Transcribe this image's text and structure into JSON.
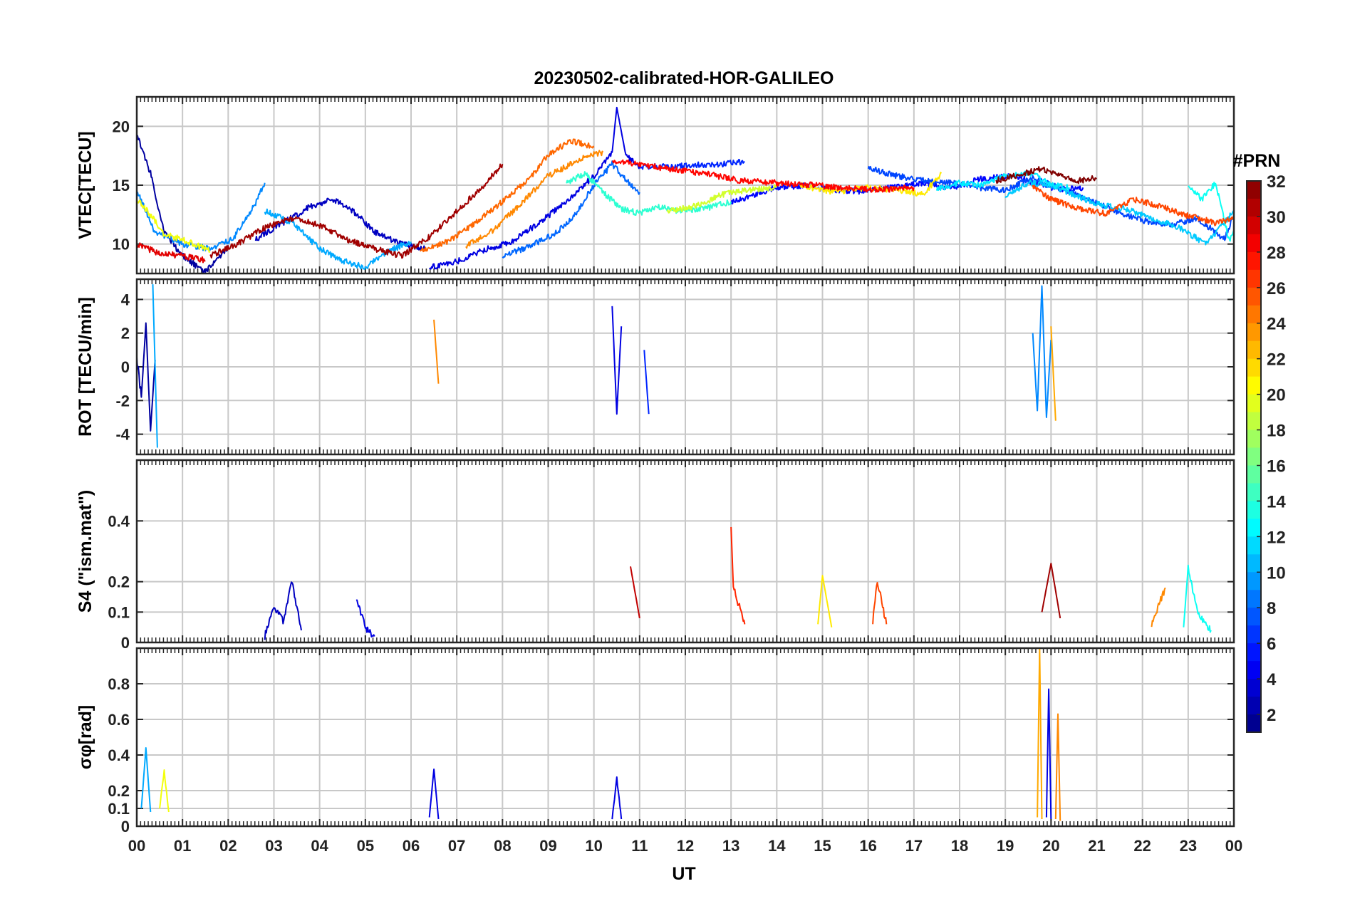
{
  "chart_data": {
    "title": "20230502-calibrated-HOR-GALILEO",
    "xlabel": "UT",
    "x_tick_labels": [
      "00",
      "01",
      "02",
      "03",
      "04",
      "05",
      "06",
      "07",
      "08",
      "09",
      "10",
      "11",
      "12",
      "13",
      "14",
      "15",
      "16",
      "17",
      "18",
      "19",
      "20",
      "21",
      "22",
      "23",
      "00"
    ],
    "xlim": [
      0,
      24
    ],
    "grid": true,
    "colorbar": {
      "label": "#PRN",
      "range": [
        1,
        32
      ],
      "ticks": [
        "2",
        "4",
        "6",
        "8",
        "10",
        "12",
        "14",
        "16",
        "18",
        "20",
        "22",
        "24",
        "26",
        "28",
        "30",
        "32"
      ],
      "colormap": "jet",
      "placement": "right"
    },
    "panels": [
      {
        "name": "vtec",
        "type": "line",
        "ylabel": "VTEC[TECU]",
        "ylim": [
          7.5,
          22.5
        ],
        "y_ticks": [
          10,
          15,
          20
        ],
        "y_tick_labels": [
          "10",
          "15",
          "20"
        ],
        "series": [
          {
            "prn": 2,
            "x": [
              0,
              0.3,
              0.6,
              1.0,
              1.5,
              2.0
            ],
            "y": [
              19.4,
              16.0,
              11.0,
              9.0,
              7.6,
              9.8
            ]
          },
          {
            "prn": 3,
            "x": [
              2.6,
              3.2,
              3.8,
              4.3,
              4.8,
              5.2,
              5.8,
              6.3
            ],
            "y": [
              10.4,
              11.8,
              13.2,
              13.8,
              12.6,
              11.0,
              10.0,
              9.6
            ]
          },
          {
            "prn": 4,
            "x": [
              6.4,
              7.0,
              7.6,
              8.2,
              8.8,
              9.4,
              10.0,
              10.4,
              10.5,
              10.7,
              11.0
            ],
            "y": [
              8.0,
              8.5,
              9.5,
              10.2,
              11.8,
              13.6,
              15.8,
              17.8,
              21.6,
              17.5,
              16.6
            ]
          },
          {
            "prn": 5,
            "x": [
              13.0,
              13.5,
              14.0,
              14.6,
              15.2,
              15.8,
              16.5,
              17.2,
              17.8,
              18.4,
              19.2,
              19.8,
              20.2,
              20.7
            ],
            "y": [
              13.5,
              14.2,
              14.8,
              15.0,
              14.6,
              14.5,
              14.8,
              15.2,
              14.7,
              15.5,
              15.8,
              15.0,
              14.6,
              14.8
            ]
          },
          {
            "prn": 6,
            "x": [
              11.0,
              11.6,
              12.2,
              12.8,
              13.3
            ],
            "y": [
              16.6,
              16.6,
              16.7,
              16.8,
              17.0
            ]
          },
          {
            "prn": 7,
            "x": [
              16.0,
              16.6,
              17.2,
              17.8,
              18.4,
              19.0,
              19.6,
              20.2,
              20.8,
              21.4,
              22.0,
              22.6,
              23.2,
              23.8,
              24.0
            ],
            "y": [
              16.5,
              15.8,
              15.4,
              15.2,
              14.8,
              14.6,
              15.6,
              14.8,
              13.8,
              12.8,
              12.0,
              11.6,
              12.2,
              10.4,
              12.5
            ]
          },
          {
            "prn": 8,
            "x": [
              8.0,
              8.6,
              9.2,
              9.6,
              10.0,
              10.4,
              10.8,
              11.0
            ],
            "y": [
              9.0,
              9.8,
              11.0,
              12.6,
              15.0,
              16.8,
              15.0,
              14.4
            ]
          },
          {
            "prn": 9,
            "x": [
              0,
              0.4,
              1.0,
              1.6,
              2.1,
              2.6,
              2.8
            ],
            "y": [
              14.5,
              11.0,
              10.0,
              9.6,
              10.4,
              13.5,
              15.2
            ]
          },
          {
            "prn": 10,
            "x": [
              2.8,
              3.4,
              4.0,
              4.5,
              5.0,
              5.5,
              6.0
            ],
            "y": [
              12.8,
              11.8,
              9.6,
              8.6,
              8.0,
              9.4,
              10.2
            ]
          },
          {
            "prn": 11,
            "x": [
              19.0,
              19.5,
              20.0,
              20.5,
              21.0,
              21.6,
              22.2,
              22.8,
              23.4,
              24.0
            ],
            "y": [
              14.0,
              15.2,
              15.0,
              14.2,
              13.4,
              13.0,
              12.2,
              11.4,
              10.0,
              12.8
            ]
          },
          {
            "prn": 12,
            "x": [
              17.5,
              18.0,
              18.5,
              19.0,
              19.6,
              20.0,
              20.4
            ],
            "y": [
              14.6,
              15.2,
              15.0,
              15.8,
              16.0,
              15.0,
              14.8
            ]
          },
          {
            "prn": 13,
            "x": [
              23.0,
              23.3,
              23.6,
              23.9,
              24.0
            ],
            "y": [
              15.0,
              13.8,
              15.2,
              10.2,
              11.2
            ]
          },
          {
            "prn": 14,
            "x": [
              9.4,
              9.8,
              10.2,
              10.6,
              11.0,
              11.4,
              11.8,
              12.4,
              13.0
            ],
            "y": [
              15.2,
              16.0,
              14.4,
              13.0,
              12.6,
              13.2,
              12.8,
              13.0,
              13.6
            ]
          },
          {
            "prn": 19,
            "x": [
              11.6,
              12.2,
              12.8,
              13.4,
              14.0
            ],
            "y": [
              12.8,
              13.2,
              14.2,
              14.6,
              14.8
            ]
          },
          {
            "prn": 20,
            "x": [
              0,
              0.3,
              0.6,
              1.0,
              1.6
            ],
            "y": [
              13.8,
              12.5,
              10.8,
              10.4,
              9.4
            ]
          },
          {
            "prn": 21,
            "x": [
              14.5,
              15.2,
              16.0,
              16.6,
              17.2,
              17.6
            ],
            "y": [
              15.0,
              14.4,
              14.8,
              14.6,
              14.2,
              16.0
            ]
          },
          {
            "prn": 24,
            "x": [
              7.2,
              7.8,
              8.4,
              9.0,
              9.4,
              9.8,
              10.2
            ],
            "y": [
              9.8,
              11.2,
              13.4,
              15.8,
              16.6,
              17.4,
              17.8
            ]
          },
          {
            "prn": 25,
            "x": [
              6.2,
              6.8,
              7.4,
              8.0,
              8.6,
              9.0,
              9.5,
              10.0
            ],
            "y": [
              9.4,
              10.2,
              11.8,
              13.6,
              15.6,
              17.6,
              18.8,
              18.2
            ]
          },
          {
            "prn": 26,
            "x": [
              19.6,
              20.0,
              20.6,
              21.2,
              21.8,
              22.4,
              23.0,
              23.6,
              24.0
            ],
            "y": [
              15.0,
              13.8,
              13.0,
              12.6,
              13.8,
              13.2,
              12.4,
              11.8,
              12.2
            ]
          },
          {
            "prn": 28,
            "x": [
              10.4,
              11.0,
              11.6,
              12.4,
              13.2,
              14.0,
              14.8,
              15.4,
              16.2,
              17.0
            ],
            "y": [
              17.0,
              16.8,
              16.4,
              16.0,
              15.4,
              15.2,
              15.0,
              14.8,
              14.6,
              14.8
            ]
          },
          {
            "prn": 29,
            "x": [
              0,
              0.5,
              1.0,
              1.5
            ],
            "y": [
              10.0,
              9.2,
              9.0,
              8.6
            ]
          },
          {
            "prn": 31,
            "x": [
              1.6,
              2.2,
              2.8,
              3.4,
              4.0,
              4.6,
              5.2,
              5.8,
              6.4,
              7.0,
              7.6,
              8.0
            ],
            "y": [
              9.0,
              10.0,
              11.4,
              12.2,
              11.6,
              10.4,
              9.6,
              9.0,
              10.6,
              12.8,
              15.0,
              16.8
            ]
          },
          {
            "prn": 32,
            "x": [
              18.8,
              19.4,
              19.8,
              20.2,
              20.6,
              21.0
            ],
            "y": [
              15.4,
              16.0,
              16.4,
              15.8,
              15.4,
              15.6
            ]
          }
        ]
      },
      {
        "name": "rot",
        "type": "line",
        "ylabel": "ROT [TECU/min]",
        "ylim": [
          -5.2,
          5.2
        ],
        "y_ticks": [
          -4,
          -2,
          0,
          2,
          4
        ],
        "y_tick_labels": [
          "-4",
          "-2",
          "0",
          "2",
          "4"
        ],
        "series": [
          {
            "prn": 2,
            "x": [
              0,
              0.1,
              0.2,
              0.3,
              0.4
            ],
            "y": [
              0.5,
              -1.8,
              2.6,
              -3.8,
              0.4
            ]
          },
          {
            "prn": 10,
            "x": [
              0.35,
              0.45
            ],
            "y": [
              4.9,
              -4.8
            ]
          },
          {
            "prn": 4,
            "x": [
              10.4,
              10.5,
              10.6
            ],
            "y": [
              3.6,
              -2.8,
              2.4
            ]
          },
          {
            "prn": 6,
            "x": [
              11.1,
              11.2
            ],
            "y": [
              1.0,
              -2.8
            ]
          },
          {
            "prn": 9,
            "x": [
              19.6,
              19.7,
              19.8,
              19.9,
              20.0
            ],
            "y": [
              2.0,
              -2.6,
              4.8,
              -3.0,
              1.6
            ]
          },
          {
            "prn": 24,
            "x": [
              6.5,
              6.6
            ],
            "y": [
              2.8,
              -1.0
            ]
          },
          {
            "prn": 23,
            "x": [
              20.0,
              20.1
            ],
            "y": [
              2.4,
              -3.2
            ]
          }
        ]
      },
      {
        "name": "s4",
        "type": "line",
        "ylabel": "S4 (\"ism.mat\")",
        "ylim": [
          0,
          0.6
        ],
        "y_ticks": [
          0,
          0.1,
          0.2,
          0.4
        ],
        "y_tick_labels": [
          "0",
          "0.1",
          "0.2",
          "0.4"
        ],
        "series": [
          {
            "prn": 3,
            "x": [
              2.8,
              3.0,
              3.2,
              3.4,
              3.6
            ],
            "y": [
              0.02,
              0.12,
              0.07,
              0.2,
              0.04
            ]
          },
          {
            "prn": 4,
            "x": [
              4.8,
              5.0,
              5.2
            ],
            "y": [
              0.15,
              0.05,
              0.02
            ]
          },
          {
            "prn": 27,
            "x": [
              13.0,
              13.05,
              13.3
            ],
            "y": [
              0.38,
              0.18,
              0.06
            ]
          },
          {
            "prn": 30,
            "x": [
              10.8,
              11.0
            ],
            "y": [
              0.25,
              0.08
            ]
          },
          {
            "prn": 31,
            "x": [
              19.8,
              20.0,
              20.2
            ],
            "y": [
              0.1,
              0.26,
              0.08
            ]
          },
          {
            "prn": 26,
            "x": [
              16.1,
              16.2,
              16.4
            ],
            "y": [
              0.07,
              0.2,
              0.06
            ]
          },
          {
            "prn": 21,
            "x": [
              14.9,
              15.0,
              15.2
            ],
            "y": [
              0.06,
              0.22,
              0.05
            ]
          },
          {
            "prn": 13,
            "x": [
              22.9,
              23.0,
              23.2,
              23.5
            ],
            "y": [
              0.05,
              0.25,
              0.1,
              0.04
            ]
          },
          {
            "prn": 24,
            "x": [
              22.2,
              22.5
            ],
            "y": [
              0.06,
              0.18
            ]
          }
        ]
      },
      {
        "name": "sigma_phi",
        "type": "line",
        "ylabel": "σφ[rad]",
        "ylim": [
          0,
          1.0
        ],
        "y_ticks": [
          0,
          0.1,
          0.2,
          0.4,
          0.6,
          0.8
        ],
        "y_tick_labels": [
          "0",
          "0.1",
          "0.2",
          "0.4",
          "0.6",
          "0.8"
        ],
        "series": [
          {
            "prn": 23,
            "x": [
              19.7,
              19.75,
              19.8
            ],
            "y": [
              0.05,
              1.0,
              0.04
            ]
          },
          {
            "prn": 4,
            "x": [
              19.9,
              19.95,
              20.0
            ],
            "y": [
              0.05,
              0.77,
              0.04
            ]
          },
          {
            "prn": 24,
            "x": [
              20.1,
              20.15,
              20.2
            ],
            "y": [
              0.04,
              0.63,
              0.03
            ]
          },
          {
            "prn": 4,
            "x": [
              6.4,
              6.5,
              6.6
            ],
            "y": [
              0.05,
              0.32,
              0.04
            ]
          },
          {
            "prn": 20,
            "x": [
              0.5,
              0.6,
              0.7
            ],
            "y": [
              0.1,
              0.31,
              0.08
            ]
          },
          {
            "prn": 10,
            "x": [
              0.1,
              0.2,
              0.3
            ],
            "y": [
              0.1,
              0.44,
              0.08
            ]
          },
          {
            "prn": 4,
            "x": [
              10.4,
              10.5,
              10.6
            ],
            "y": [
              0.04,
              0.27,
              0.04
            ]
          }
        ]
      }
    ]
  }
}
